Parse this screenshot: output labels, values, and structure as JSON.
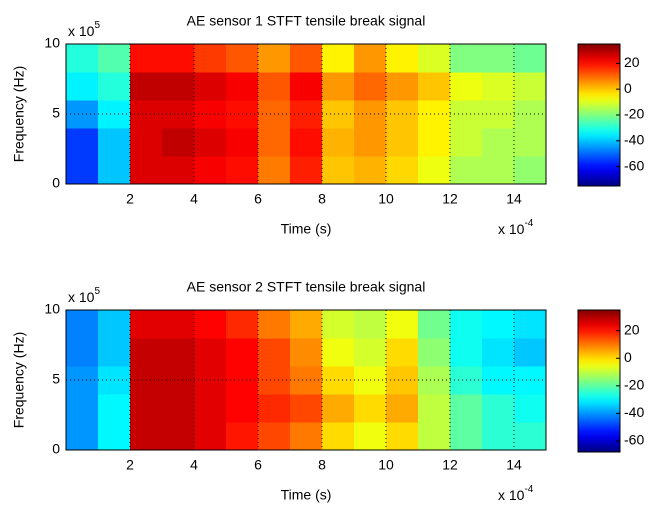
{
  "chart_data": [
    {
      "type": "heatmap",
      "title": "AE sensor 1 STFT tensile break signal",
      "xlabel": "Time (s)",
      "ylabel": "Frequency (Hz)",
      "x_multiplier": {
        "base": "x 10",
        "exp": "-4"
      },
      "y_multiplier": {
        "base": "x 10",
        "exp": "5"
      },
      "xbins": [
        0,
        1,
        2,
        3,
        4,
        5,
        6,
        7,
        8,
        9,
        10,
        11,
        12,
        13,
        14,
        15
      ],
      "ybins": [
        0,
        2,
        4,
        6,
        8,
        10
      ],
      "xlim": [
        0,
        15
      ],
      "ylim": [
        0,
        10
      ],
      "xticks": [
        2,
        4,
        6,
        8,
        10,
        12,
        14
      ],
      "yticks": [
        0,
        5,
        10
      ],
      "grid": true,
      "colormap": "jet",
      "clim": [
        -75,
        35
      ],
      "cticks": [
        20,
        0,
        -20,
        -40,
        -60
      ],
      "z": [
        [
          -55,
          -40,
          25,
          25,
          22,
          20,
          8,
          18,
          0,
          2,
          -2,
          -8,
          -15,
          -15,
          -18
        ],
        [
          -55,
          -40,
          25,
          28,
          25,
          22,
          10,
          20,
          2,
          5,
          0,
          -5,
          -12,
          -15,
          -15
        ],
        [
          -45,
          -35,
          25,
          25,
          22,
          20,
          10,
          18,
          0,
          5,
          0,
          -5,
          -12,
          -12,
          -15
        ],
        [
          -35,
          -30,
          28,
          28,
          25,
          22,
          12,
          22,
          5,
          10,
          5,
          0,
          -8,
          -10,
          -12
        ],
        [
          -30,
          -25,
          20,
          20,
          15,
          12,
          5,
          12,
          -5,
          5,
          -5,
          -10,
          -20,
          -20,
          -22
        ]
      ]
    },
    {
      "type": "heatmap",
      "title": "AE sensor 2 STFT tensile break signal",
      "xlabel": "Time (s)",
      "ylabel": "Frequency (Hz)",
      "x_multiplier": {
        "base": "x 10",
        "exp": "-4"
      },
      "y_multiplier": {
        "base": "x 10",
        "exp": "5"
      },
      "xbins": [
        0,
        1,
        2,
        3,
        4,
        5,
        6,
        7,
        8,
        9,
        10,
        11,
        12,
        13,
        14,
        15
      ],
      "ybins": [
        0,
        2,
        4,
        6,
        8,
        10
      ],
      "xlim": [
        0,
        15
      ],
      "ylim": [
        0,
        10
      ],
      "xticks": [
        2,
        4,
        6,
        8,
        10,
        12,
        14
      ],
      "yticks": [
        0,
        5,
        10
      ],
      "grid": true,
      "colormap": "jet",
      "clim": [
        -68,
        35
      ],
      "cticks": [
        20,
        0,
        -20,
        -40,
        -60
      ],
      "z": [
        [
          -40,
          -30,
          28,
          28,
          25,
          20,
          15,
          10,
          0,
          -5,
          0,
          -10,
          -20,
          -25,
          -25
        ],
        [
          -40,
          -30,
          28,
          28,
          25,
          22,
          18,
          15,
          5,
          0,
          5,
          -10,
          -20,
          -25,
          -28
        ],
        [
          -40,
          -32,
          28,
          28,
          25,
          22,
          15,
          10,
          0,
          -5,
          2,
          -12,
          -25,
          -30,
          -30
        ],
        [
          -42,
          -35,
          28,
          28,
          25,
          22,
          15,
          8,
          -5,
          -8,
          0,
          -15,
          -28,
          -32,
          -35
        ],
        [
          -42,
          -35,
          25,
          25,
          22,
          18,
          10,
          5,
          -8,
          -10,
          -5,
          -18,
          -28,
          -30,
          -32
        ]
      ]
    }
  ]
}
